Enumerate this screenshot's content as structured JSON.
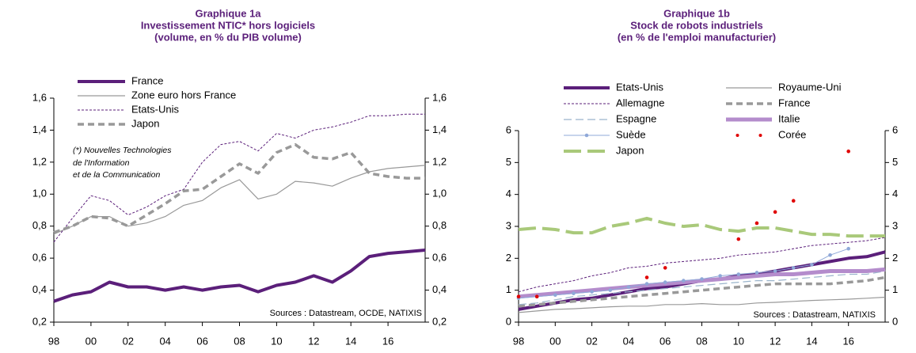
{
  "chart_data": [
    {
      "type": "line",
      "title": "Graphique 1a",
      "subtitle": [
        "Investissement NTIC* hors logiciels",
        "(volume, en % du PIB volume)"
      ],
      "x": [
        1998,
        1999,
        2000,
        2001,
        2002,
        2003,
        2004,
        2005,
        2006,
        2007,
        2008,
        2009,
        2010,
        2011,
        2012,
        2013,
        2014,
        2015,
        2016,
        2017,
        2018
      ],
      "xlim": [
        1998,
        2018
      ],
      "xticks": [
        {
          "value": 1998,
          "label": "98"
        },
        {
          "value": 2000,
          "label": "00"
        },
        {
          "value": 2002,
          "label": "02"
        },
        {
          "value": 2004,
          "label": "04"
        },
        {
          "value": 2006,
          "label": "06"
        },
        {
          "value": 2008,
          "label": "08"
        },
        {
          "value": 2010,
          "label": "10"
        },
        {
          "value": 2012,
          "label": "12"
        },
        {
          "value": 2014,
          "label": "14"
        },
        {
          "value": 2016,
          "label": "16"
        }
      ],
      "ylim": [
        0.2,
        1.6
      ],
      "yticks": [
        {
          "value": 0.2,
          "label": "0,2"
        },
        {
          "value": 0.4,
          "label": "0,4"
        },
        {
          "value": 0.6,
          "label": "0,6"
        },
        {
          "value": 0.8,
          "label": "0,8"
        },
        {
          "value": 1.0,
          "label": "1,0"
        },
        {
          "value": 1.2,
          "label": "1,2"
        },
        {
          "value": 1.4,
          "label": "1,4"
        },
        {
          "value": 1.6,
          "label": "1,6"
        }
      ],
      "y2lim": [
        0.2,
        1.6
      ],
      "y2ticks": [
        {
          "value": 0.2,
          "label": "0,2"
        },
        {
          "value": 0.4,
          "label": "0,4"
        },
        {
          "value": 0.6,
          "label": "0,6"
        },
        {
          "value": 0.8,
          "label": "0,8"
        },
        {
          "value": 1.0,
          "label": "1,0"
        },
        {
          "value": 1.2,
          "label": "1,2"
        },
        {
          "value": 1.4,
          "label": "1,4"
        },
        {
          "value": 1.6,
          "label": "1,6"
        }
      ],
      "annotations": [
        "(*) Nouvelles Technologies",
        "de l'Information",
        "et de la Communication",
        "Sources : Datastream,  OCDE, NATIXIS"
      ],
      "series": [
        {
          "name": "France",
          "color": "#5b1f7a",
          "width": 4,
          "values": [
            0.33,
            0.37,
            0.39,
            0.45,
            0.42,
            0.42,
            0.4,
            0.42,
            0.4,
            0.42,
            0.43,
            0.39,
            0.43,
            0.45,
            0.49,
            0.45,
            0.52,
            0.61,
            0.63,
            0.64,
            0.65
          ]
        },
        {
          "name": "Zone euro hors France",
          "color": "#999999",
          "width": 1.2,
          "values": [
            0.75,
            0.8,
            0.86,
            0.86,
            0.8,
            0.82,
            0.86,
            0.93,
            0.96,
            1.04,
            1.09,
            0.97,
            1.0,
            1.08,
            1.07,
            1.05,
            1.1,
            1.14,
            1.16,
            1.17,
            1.18
          ]
        },
        {
          "name": "Etats-Unis",
          "color": "#5b1f7a",
          "width": 1,
          "dash": "3,2",
          "values": [
            0.7,
            0.85,
            0.99,
            0.96,
            0.87,
            0.92,
            0.99,
            1.03,
            1.2,
            1.31,
            1.33,
            1.27,
            1.38,
            1.35,
            1.4,
            1.42,
            1.45,
            1.49,
            1.49,
            1.5,
            1.5
          ]
        },
        {
          "name": "Japon",
          "color": "#999999",
          "width": 3.5,
          "dash": "8,5",
          "values": [
            0.76,
            0.8,
            0.86,
            0.85,
            0.8,
            0.87,
            0.94,
            1.02,
            1.03,
            1.11,
            1.19,
            1.13,
            1.26,
            1.31,
            1.23,
            1.22,
            1.26,
            1.13,
            1.11,
            1.1,
            1.1
          ]
        }
      ]
    },
    {
      "type": "line",
      "title": "Graphique 1b",
      "subtitle": [
        "Stock de robots industriels",
        "(en % de l'emploi manufacturier)"
      ],
      "x": [
        1998,
        1999,
        2000,
        2001,
        2002,
        2003,
        2004,
        2005,
        2006,
        2007,
        2008,
        2009,
        2010,
        2011,
        2012,
        2013,
        2014,
        2015,
        2016,
        2017,
        2018
      ],
      "xlim": [
        1998,
        2018
      ],
      "xticks": [
        {
          "value": 1998,
          "label": "98"
        },
        {
          "value": 2000,
          "label": "00"
        },
        {
          "value": 2002,
          "label": "02"
        },
        {
          "value": 2004,
          "label": "04"
        },
        {
          "value": 2006,
          "label": "06"
        },
        {
          "value": 2008,
          "label": "08"
        },
        {
          "value": 2010,
          "label": "10"
        },
        {
          "value": 2012,
          "label": "12"
        },
        {
          "value": 2014,
          "label": "14"
        },
        {
          "value": 2016,
          "label": "16"
        }
      ],
      "ylim": [
        0,
        6
      ],
      "yticks": [
        0,
        1,
        2,
        3,
        4,
        5,
        6
      ],
      "y2lim": [
        0,
        6
      ],
      "y2ticks": [
        0,
        1,
        2,
        3,
        4,
        5,
        6
      ],
      "annotations": [
        "Sources : Datastream,  NATIXIS"
      ],
      "series": [
        {
          "name": "Etats-Unis",
          "color": "#5b1f7a",
          "width": 4,
          "values": [
            0.4,
            0.5,
            0.6,
            0.7,
            0.75,
            0.85,
            0.95,
            1.05,
            1.1,
            1.2,
            1.3,
            1.35,
            1.45,
            1.5,
            1.6,
            1.7,
            1.8,
            1.9,
            2.0,
            2.05,
            2.2
          ]
        },
        {
          "name": "Royaume-Uni",
          "color": "#999999",
          "width": 1.2,
          "values": [
            0.3,
            0.35,
            0.4,
            0.42,
            0.45,
            0.48,
            0.5,
            0.5,
            0.55,
            0.55,
            0.58,
            0.55,
            0.55,
            0.6,
            0.62,
            0.65,
            0.68,
            0.7,
            0.72,
            0.75,
            0.78
          ]
        },
        {
          "name": "Allemagne",
          "color": "#5b1f7a",
          "width": 1,
          "dash": "3,2",
          "values": [
            0.95,
            1.1,
            1.2,
            1.3,
            1.45,
            1.55,
            1.7,
            1.75,
            1.85,
            1.9,
            1.95,
            2.0,
            2.1,
            2.15,
            2.2,
            2.3,
            2.4,
            2.45,
            2.5,
            2.55,
            2.65
          ]
        },
        {
          "name": "France",
          "color": "#999999",
          "width": 3.5,
          "dash": "8,5",
          "values": [
            0.5,
            0.55,
            0.6,
            0.65,
            0.7,
            0.75,
            0.8,
            0.85,
            0.9,
            0.95,
            1.0,
            1.05,
            1.1,
            1.15,
            1.2,
            1.2,
            1.2,
            1.2,
            1.25,
            1.3,
            1.4
          ]
        },
        {
          "name": "Espagne",
          "color": "#9ab4cc",
          "width": 1.2,
          "dash": "10,5",
          "values": [
            0.55,
            0.6,
            0.7,
            0.8,
            0.85,
            0.9,
            0.95,
            1.0,
            1.05,
            1.1,
            1.15,
            1.2,
            1.25,
            1.3,
            1.3,
            1.35,
            1.4,
            1.45,
            1.5,
            1.5,
            1.6
          ]
        },
        {
          "name": "Italie",
          "color": "#b48ccc",
          "width": 5,
          "values": [
            0.8,
            0.85,
            0.9,
            0.95,
            1.0,
            1.05,
            1.1,
            1.15,
            1.2,
            1.25,
            1.3,
            1.35,
            1.4,
            1.45,
            1.5,
            1.5,
            1.55,
            1.6,
            1.6,
            1.6,
            1.65
          ]
        },
        {
          "name": "Suède",
          "color": "#8fa8d8",
          "width": 1,
          "marker": "dot",
          "values": [
            0.75,
            0.8,
            0.85,
            0.9,
            0.95,
            1.0,
            1.1,
            1.2,
            1.25,
            1.3,
            1.35,
            1.45,
            1.5,
            1.55,
            1.6,
            1.7,
            1.8,
            2.1,
            2.3,
            null,
            null
          ]
        },
        {
          "name": "Corée",
          "color": "#e00000",
          "line": false,
          "marker": "dot",
          "values": [
            0.8,
            0.8,
            null,
            null,
            null,
            null,
            null,
            1.4,
            1.7,
            null,
            null,
            null,
            2.6,
            3.1,
            3.45,
            3.8,
            null,
            null,
            5.35,
            null,
            null
          ]
        },
        {
          "name": "Japon",
          "color": "#a9c97a",
          "width": 4,
          "dash": "22,8",
          "values": [
            2.9,
            2.95,
            2.9,
            2.8,
            2.8,
            3.0,
            3.1,
            3.25,
            3.1,
            3.0,
            3.05,
            2.9,
            2.85,
            2.95,
            2.95,
            2.85,
            2.75,
            2.75,
            2.7,
            2.7,
            2.7
          ]
        }
      ]
    }
  ]
}
